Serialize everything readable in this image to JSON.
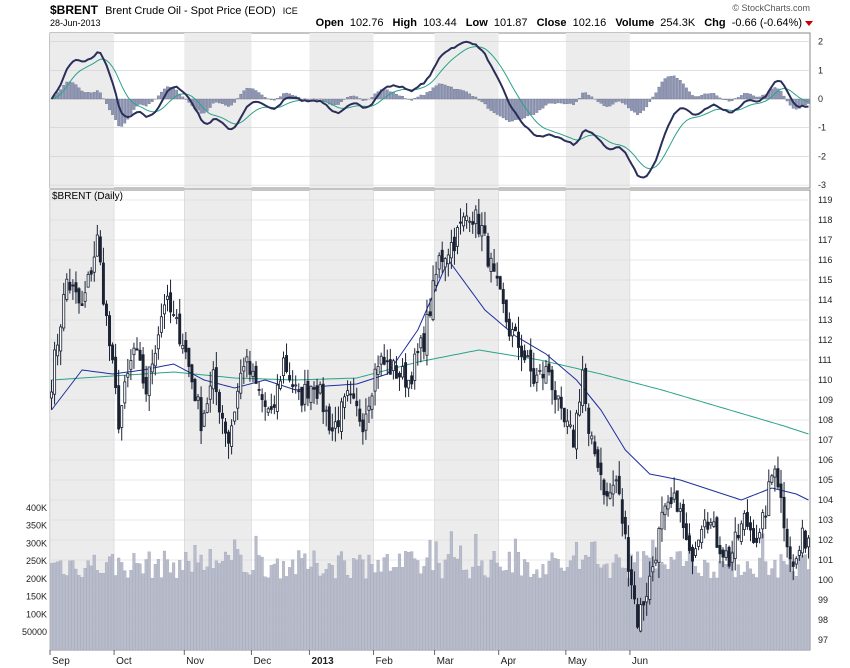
{
  "header": {
    "symbol": "$BRENT",
    "name": "Brent Crude Oil - Spot Price (EOD)",
    "exchange": "ICE",
    "date": "28-Jun-2013",
    "open_label": "Open",
    "open": "102.76",
    "high_label": "High",
    "high": "103.44",
    "low_label": "Low",
    "low": "101.87",
    "close_label": "Close",
    "close": "102.16",
    "volume_label": "Volume",
    "volume": "254.3K",
    "chg_label": "Chg",
    "chg": "-0.66 (-0.64%)",
    "watermark": "© StockCharts.com"
  },
  "colors": {
    "candle": "#1a2233",
    "ma_short": "#1f2f9e",
    "ma_long": "#2aa38a",
    "volume": "#b8bccb",
    "macd_line": "#2a2f5a",
    "macd_signal": "#2aa38a",
    "histogram": "#8f97b5",
    "down_arrow": "#cc0000",
    "shade": "#ececec"
  },
  "chart_data": [
    {
      "type": "line",
      "panel": "macd",
      "y_ticks": [
        2,
        1,
        0,
        -1,
        -2,
        -3
      ],
      "ylim": [
        -3.1,
        2.3
      ],
      "series": [],
      "months": [
        "Sep",
        "Oct",
        "Nov",
        "Dec",
        "2013",
        "Feb",
        "Mar",
        "Apr",
        "May",
        "Jun"
      ]
    },
    {
      "type": "candlestick",
      "panel": "price",
      "label": "$BRENT (Daily)",
      "y_ticks": [
        97,
        98,
        99,
        100,
        101,
        102,
        103,
        104,
        105,
        106,
        107,
        108,
        109,
        110,
        111,
        112,
        113,
        114,
        115,
        116,
        117,
        118,
        119
      ],
      "ylim": [
        96.5,
        119.5
      ],
      "x": [
        "Sep",
        "Oct",
        "Nov",
        "Dec",
        "2013",
        "Feb",
        "Mar",
        "Apr",
        "May",
        "Jun"
      ],
      "x_ticks": [
        "Sep",
        "Oct",
        "Nov",
        "Dec",
        "2013",
        "Feb",
        "Mar",
        "Apr",
        "May",
        "Jun"
      ],
      "anchors": [
        [
          0,
          110.0
        ],
        [
          5,
          115.0
        ],
        [
          10,
          113.5
        ],
        [
          15,
          117.0
        ],
        [
          18,
          113.0
        ],
        [
          22,
          108.0
        ],
        [
          27,
          111.5
        ],
        [
          31,
          109.5
        ],
        [
          37,
          114.0
        ],
        [
          43,
          112.0
        ],
        [
          49,
          108.0
        ],
        [
          53,
          110.0
        ],
        [
          58,
          107.0
        ],
        [
          63,
          111.0
        ],
        [
          66,
          110.0
        ],
        [
          72,
          108.0
        ],
        [
          76,
          111.0
        ],
        [
          81,
          109.0
        ],
        [
          86,
          110.0
        ],
        [
          92,
          107.5
        ],
        [
          97,
          109.0
        ],
        [
          102,
          108.0
        ],
        [
          107,
          111.0
        ],
        [
          112,
          110.5
        ],
        [
          117,
          110.0
        ],
        [
          122,
          112.0
        ],
        [
          127,
          116.0
        ],
        [
          132,
          117.0
        ],
        [
          137,
          118.5
        ],
        [
          141,
          117.5
        ],
        [
          145,
          115.0
        ],
        [
          150,
          112.5
        ],
        [
          154,
          111.5
        ],
        [
          158,
          110.0
        ],
        [
          163,
          110.5
        ],
        [
          167,
          108.0
        ],
        [
          171,
          107.0
        ],
        [
          174,
          110.5
        ],
        [
          176,
          107.0
        ],
        [
          179,
          106.0
        ],
        [
          182,
          104.0
        ],
        [
          185,
          105.0
        ],
        [
          189,
          101.0
        ],
        [
          192,
          98.0
        ],
        [
          196,
          100.0
        ],
        [
          200,
          103.0
        ],
        [
          205,
          104.0
        ],
        [
          209,
          101.0
        ],
        [
          214,
          103.5
        ],
        [
          218,
          102.0
        ],
        [
          222,
          101.0
        ],
        [
          227,
          103.0
        ],
        [
          232,
          102.0
        ],
        [
          237,
          106.0
        ],
        [
          240,
          103.0
        ],
        [
          243,
          100.5
        ],
        [
          246,
          102.0
        ],
        [
          248,
          102.2
        ]
      ],
      "ma_short": [
        [
          0,
          108.5
        ],
        [
          10,
          110.5
        ],
        [
          20,
          110.3
        ],
        [
          30,
          110.5
        ],
        [
          40,
          110.8
        ],
        [
          50,
          110.0
        ],
        [
          60,
          109.6
        ],
        [
          70,
          110.0
        ],
        [
          80,
          109.5
        ],
        [
          90,
          109.7
        ],
        [
          100,
          109.8
        ],
        [
          110,
          110.3
        ],
        [
          120,
          112.5
        ],
        [
          130,
          116.0
        ],
        [
          142,
          113.5
        ],
        [
          152,
          112.2
        ],
        [
          162,
          111.3
        ],
        [
          172,
          110.0
        ],
        [
          180,
          108.5
        ],
        [
          188,
          106.5
        ],
        [
          196,
          105.3
        ],
        [
          206,
          105.0
        ],
        [
          216,
          104.5
        ],
        [
          226,
          104.0
        ],
        [
          236,
          104.6
        ],
        [
          244,
          104.3
        ],
        [
          248,
          104.0
        ]
      ],
      "ma_long": [
        [
          0,
          110.0
        ],
        [
          20,
          110.2
        ],
        [
          40,
          110.4
        ],
        [
          60,
          110.1
        ],
        [
          80,
          110.0
        ],
        [
          100,
          110.1
        ],
        [
          120,
          110.9
        ],
        [
          140,
          111.5
        ],
        [
          160,
          111.0
        ],
        [
          180,
          110.3
        ],
        [
          200,
          109.5
        ],
        [
          220,
          108.6
        ],
        [
          240,
          107.7
        ],
        [
          248,
          107.3
        ]
      ]
    },
    {
      "type": "bar",
      "panel": "volume",
      "y_ticks": [
        50000,
        100000,
        150000,
        200000,
        250000,
        300000,
        350000,
        400000
      ],
      "y_tick_labels": [
        "50000",
        "100K",
        "150K",
        "200K",
        "250K",
        "300K",
        "350K",
        "400K"
      ],
      "ylim": [
        0,
        450000
      ],
      "base": 240000,
      "range": 40000
    }
  ]
}
